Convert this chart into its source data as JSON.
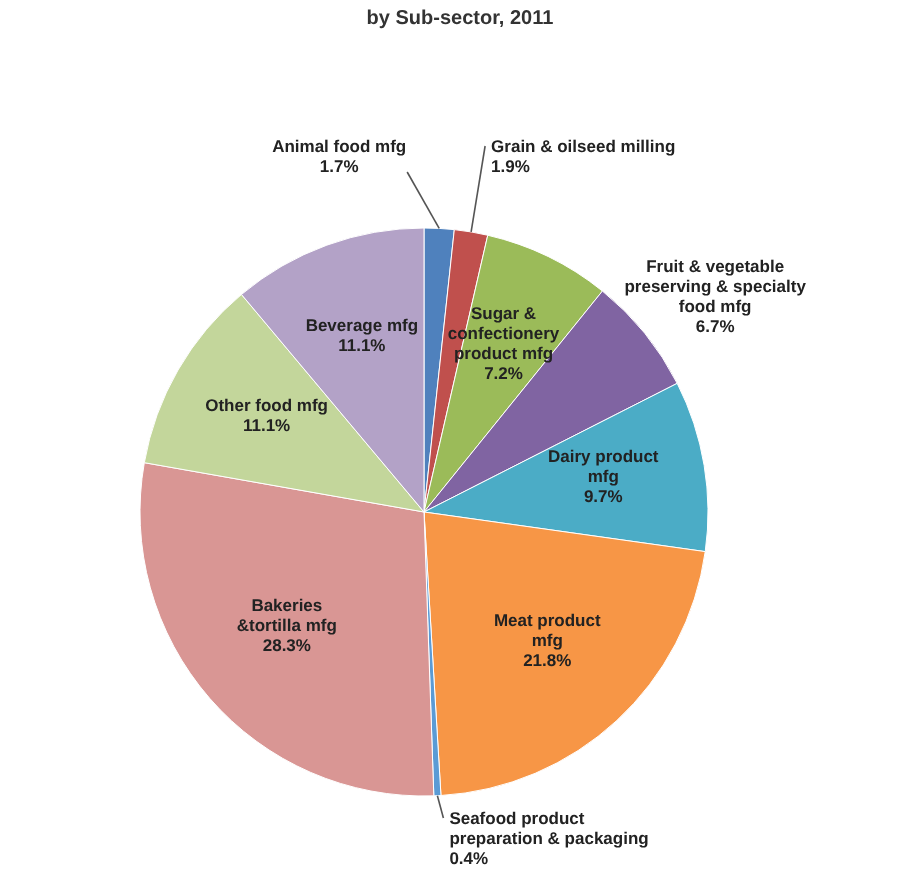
{
  "chart_data": {
    "type": "pie",
    "title": "by Sub-sector, 2011",
    "categories": [
      "Animal food mfg",
      "Grain & oilseed milling",
      "Sugar & confectionery product mfg",
      "Fruit & vegetable preserving & specialty food mfg",
      "Dairy product mfg",
      "Meat product mfg",
      "Seafood product preparation & packaging",
      "Bakeries &tortilla mfg",
      "Other food mfg",
      "Beverage mfg"
    ],
    "values": [
      1.7,
      1.9,
      7.2,
      6.7,
      9.7,
      21.8,
      0.4,
      28.3,
      11.1,
      11.1
    ],
    "value_labels": [
      "1.7%",
      "1.9%",
      "7.2%",
      "6.7%",
      "9.7%",
      "21.8%",
      "0.4%",
      "28.3%",
      "11.1%",
      "11.1%"
    ],
    "colors": [
      "#4f81bd",
      "#c0504d",
      "#9bbb59",
      "#8064a2",
      "#4bacc6",
      "#f79646",
      "#5b9bd5",
      "#d99694",
      "#c3d69b",
      "#b3a2c7"
    ]
  }
}
